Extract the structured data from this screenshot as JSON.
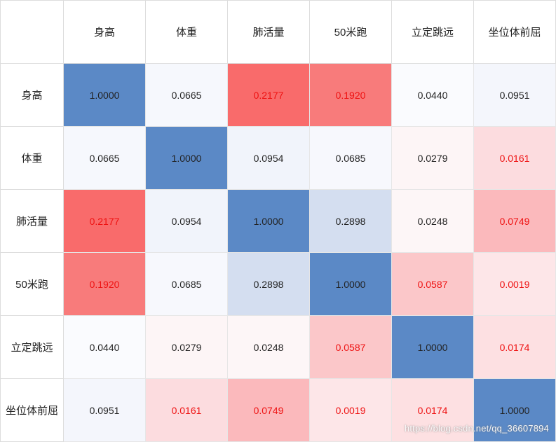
{
  "chart_data": {
    "type": "heatmap",
    "title": "",
    "row_labels": [
      "身高",
      "体重",
      "肺活量",
      "50米跑",
      "立定跳远",
      "坐位体前屈"
    ],
    "col_labels": [
      "身高",
      "体重",
      "肺活量",
      "50米跑",
      "立定跳远",
      "坐位体前屈"
    ],
    "values": [
      [
        "1.0000",
        "0.0665",
        "0.2177",
        "0.1920",
        "0.0440",
        "0.0951"
      ],
      [
        "0.0665",
        "1.0000",
        "0.0954",
        "0.0685",
        "0.0279",
        "0.0161"
      ],
      [
        "0.2177",
        "0.0954",
        "1.0000",
        "0.2898",
        "0.0248",
        "0.0749"
      ],
      [
        "0.1920",
        "0.0685",
        "0.2898",
        "1.0000",
        "0.0587",
        "0.0019"
      ],
      [
        "0.0440",
        "0.0279",
        "0.0248",
        "0.0587",
        "1.0000",
        "0.0174"
      ],
      [
        "0.0951",
        "0.0161",
        "0.0749",
        "0.0019",
        "0.0174",
        "1.0000"
      ]
    ],
    "cell_colors": [
      [
        "#5b89c6",
        "#f6f8fd",
        "#f96b6b",
        "#f87b7b",
        "#fafbfe",
        "#f4f6fc"
      ],
      [
        "#f6f8fd",
        "#5b89c6",
        "#f1f4fb",
        "#f7f8fd",
        "#fdf5f6",
        "#fcdcdf"
      ],
      [
        "#f96b6b",
        "#f1f4fb",
        "#5b89c6",
        "#d4def0",
        "#fdf6f7",
        "#fbb9bc"
      ],
      [
        "#f87b7b",
        "#f7f8fd",
        "#d4def0",
        "#5b89c6",
        "#fbc7c9",
        "#fde6e8"
      ],
      [
        "#fafbfe",
        "#fdf5f6",
        "#fdf6f7",
        "#fbc7c9",
        "#5b89c6",
        "#fde0e2"
      ],
      [
        "#f4f6fc",
        "#fcdcdf",
        "#fbb9bc",
        "#fde6e8",
        "#fde0e2",
        "#5b89c6"
      ]
    ],
    "text_colors": [
      [
        "#222222",
        "#222222",
        "#ee1111",
        "#ee1111",
        "#222222",
        "#222222"
      ],
      [
        "#222222",
        "#222222",
        "#222222",
        "#222222",
        "#222222",
        "#ee1111"
      ],
      [
        "#ee1111",
        "#222222",
        "#222222",
        "#222222",
        "#222222",
        "#ee1111"
      ],
      [
        "#ee1111",
        "#222222",
        "#222222",
        "#222222",
        "#ee1111",
        "#ee1111"
      ],
      [
        "#222222",
        "#222222",
        "#222222",
        "#ee1111",
        "#222222",
        "#ee1111"
      ],
      [
        "#222222",
        "#ee1111",
        "#ee1111",
        "#ee1111",
        "#ee1111",
        "#222222"
      ]
    ],
    "watermark": "https://blog.csdn.net/qq_36607894"
  }
}
